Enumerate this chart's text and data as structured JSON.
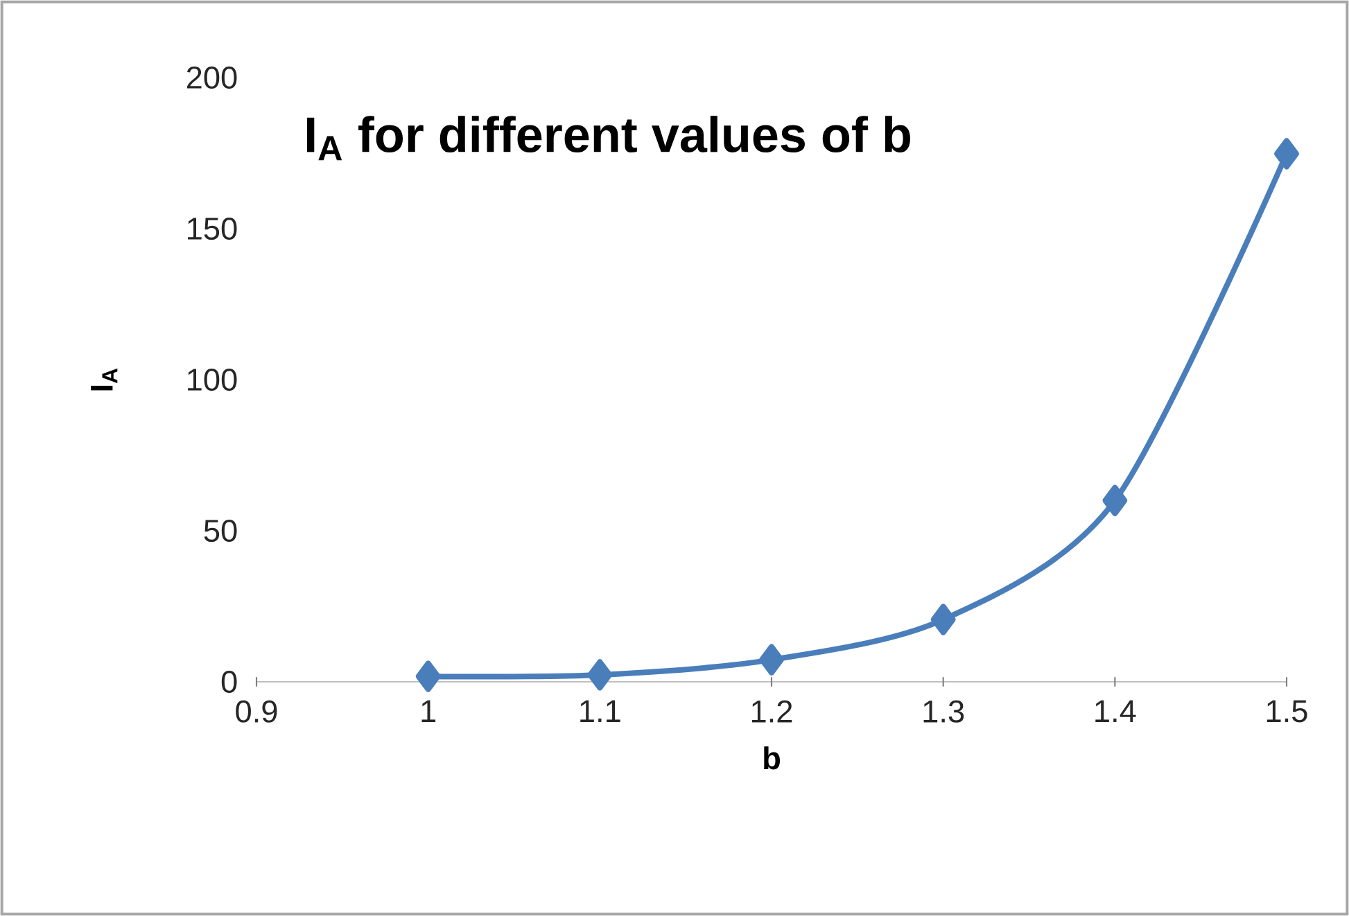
{
  "chart_data": {
    "type": "line",
    "title": "I$_{A}$ for different values of b",
    "xlabel": "b",
    "ylabel": "I$_{A}$",
    "x": [
      1,
      1.1,
      1.2,
      1.3,
      1.4,
      1.5
    ],
    "series": [
      {
        "color": "#4a7ebb",
        "values": [
          1.8,
          2.3,
          7.3,
          20.6,
          60,
          174.8
        ]
      }
    ],
    "xlim": [
      0.9,
      1.5
    ],
    "ylim": [
      0,
      200
    ],
    "xticks": [
      0.9,
      1,
      1.1,
      1.2,
      1.3,
      1.4,
      1.5
    ],
    "yticks": [
      0,
      50,
      100,
      150,
      200
    ],
    "grid": false,
    "marker": "diamond",
    "line_style": "solid"
  }
}
